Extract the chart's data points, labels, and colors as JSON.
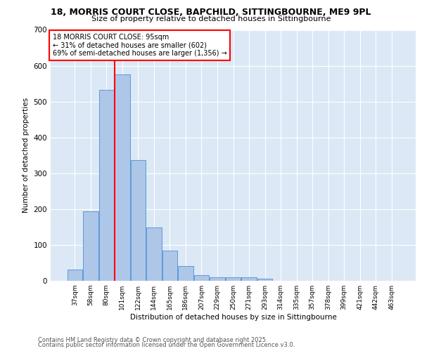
{
  "title1": "18, MORRIS COURT CLOSE, BAPCHILD, SITTINGBOURNE, ME9 9PL",
  "title2": "Size of property relative to detached houses in Sittingbourne",
  "xlabel": "Distribution of detached houses by size in Sittingbourne",
  "ylabel": "Number of detached properties",
  "categories": [
    "37sqm",
    "58sqm",
    "80sqm",
    "101sqm",
    "122sqm",
    "144sqm",
    "165sqm",
    "186sqm",
    "207sqm",
    "229sqm",
    "250sqm",
    "271sqm",
    "293sqm",
    "314sqm",
    "335sqm",
    "357sqm",
    "378sqm",
    "399sqm",
    "421sqm",
    "442sqm",
    "463sqm"
  ],
  "values": [
    32,
    193,
    533,
    575,
    337,
    148,
    85,
    42,
    15,
    10,
    10,
    10,
    5,
    0,
    0,
    0,
    0,
    0,
    0,
    0,
    0
  ],
  "bar_color": "#aec6e8",
  "bar_edge_color": "#5b9bd5",
  "vline_x": 2.5,
  "vline_color": "red",
  "annotation_title": "18 MORRIS COURT CLOSE: 95sqm",
  "annotation_line1": "← 31% of detached houses are smaller (602)",
  "annotation_line2": "69% of semi-detached houses are larger (1,356) →",
  "annotation_box_color": "white",
  "annotation_box_edge": "red",
  "ylim": [
    0,
    700
  ],
  "yticks": [
    0,
    100,
    200,
    300,
    400,
    500,
    600,
    700
  ],
  "bg_color": "#dce8f5",
  "footer1": "Contains HM Land Registry data © Crown copyright and database right 2025.",
  "footer2": "Contains public sector information licensed under the Open Government Licence v3.0."
}
